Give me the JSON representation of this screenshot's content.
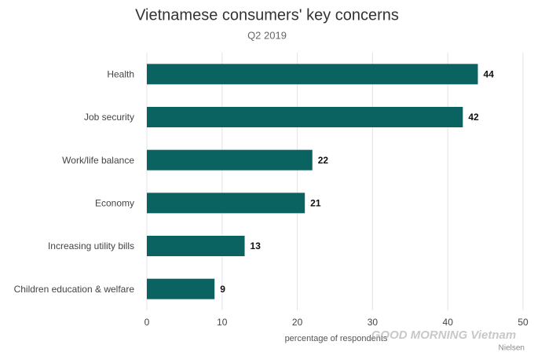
{
  "chart_data": {
    "type": "hbar",
    "title": "Vietnamese consumers' key concerns",
    "subtitle": "Q2 2019",
    "categories": [
      "Health",
      "Job security",
      "Work/life balance",
      "Economy",
      "Increasing utility bills",
      "Children education & welfare"
    ],
    "values": [
      44,
      42,
      22,
      21,
      13,
      9
    ],
    "color": "#0a6360",
    "xlim": [
      0,
      50
    ],
    "xticks": [
      0,
      10,
      20,
      30,
      40,
      50
    ],
    "grid": true,
    "xlabel": "percentage of respondents",
    "source": "Nielsen",
    "watermark": "GOOD MORNING Vietnam"
  }
}
